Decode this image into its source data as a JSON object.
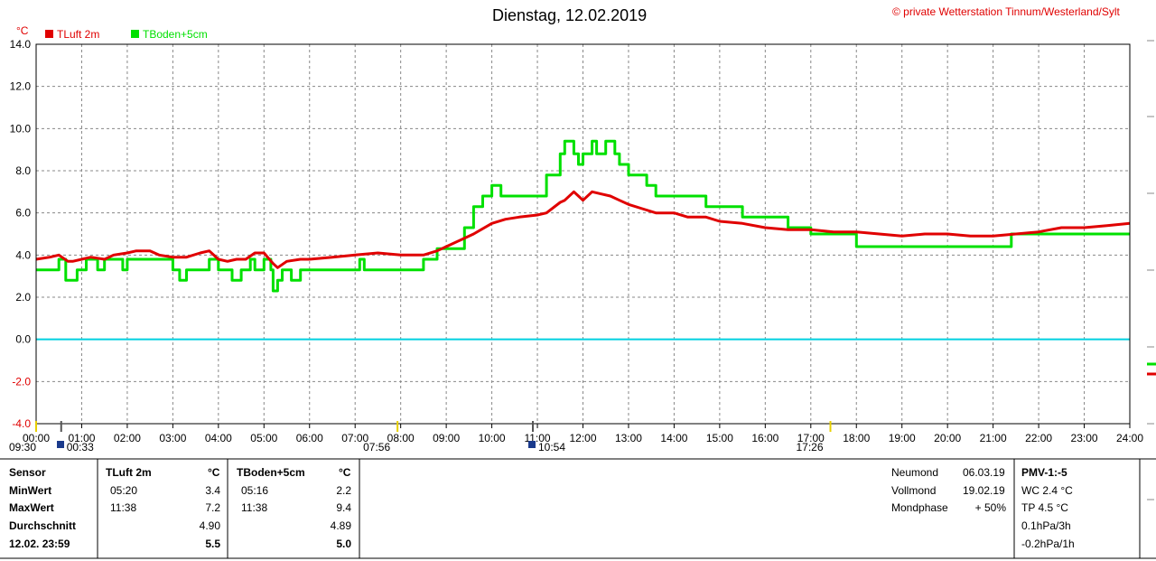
{
  "chart_data": {
    "type": "line",
    "title": "Dienstag, 12.02.2019",
    "copyright": "© private Wetterstation Tinnum/Westerland/Sylt",
    "ylabel": "°C",
    "ylim": [
      -4,
      14
    ],
    "yticks": [
      "-4.0",
      "-2.0",
      "0.0",
      "2.0",
      "4.0",
      "6.0",
      "8.0",
      "10.0",
      "12.0",
      "14.0"
    ],
    "xticks": [
      "00:00",
      "01:00",
      "02:00",
      "03:00",
      "04:00",
      "05:00",
      "06:00",
      "07:00",
      "08:00",
      "09:00",
      "10:00",
      "11:00",
      "12:00",
      "13:00",
      "14:00",
      "15:00",
      "16:00",
      "17:00",
      "18:00",
      "19:00",
      "20:00",
      "21:00",
      "22:00",
      "23:00",
      "24:00"
    ],
    "xlim": [
      0,
      24
    ],
    "grid": true,
    "zero_line": 0,
    "events": [
      {
        "label": "09:30",
        "x": 0.0
      },
      {
        "label": "00:33",
        "x": 0.55
      },
      {
        "label": "07:56",
        "x": 7.93
      },
      {
        "label": "10:54",
        "x": 10.9
      },
      {
        "label": "17:26",
        "x": 17.43
      }
    ],
    "series": [
      {
        "name": "TLuft 2m",
        "color": "#e00000",
        "x": [
          0,
          0.3,
          0.5,
          0.7,
          0.8,
          1.0,
          1.2,
          1.5,
          1.7,
          2.0,
          2.2,
          2.5,
          2.7,
          3.0,
          3.3,
          3.6,
          3.8,
          4.0,
          4.2,
          4.4,
          4.6,
          4.8,
          5.0,
          5.2,
          5.3,
          5.5,
          5.8,
          6.0,
          6.5,
          7.0,
          7.5,
          8.0,
          8.5,
          8.8,
          9.0,
          9.3,
          9.6,
          10.0,
          10.3,
          10.6,
          11.0,
          11.2,
          11.5,
          11.6,
          11.8,
          11.9,
          12.0,
          12.2,
          12.4,
          12.6,
          12.8,
          13.0,
          13.3,
          13.6,
          14.0,
          14.3,
          14.7,
          15.0,
          15.5,
          16.0,
          16.5,
          17.0,
          17.5,
          18.0,
          18.5,
          19.0,
          19.5,
          20.0,
          20.5,
          21.0,
          21.5,
          22.0,
          22.5,
          23.0,
          23.5,
          24.0
        ],
        "values": [
          3.8,
          3.9,
          4.0,
          3.7,
          3.7,
          3.8,
          3.9,
          3.8,
          4.0,
          4.1,
          4.2,
          4.2,
          4.0,
          3.9,
          3.9,
          4.1,
          4.2,
          3.8,
          3.7,
          3.8,
          3.8,
          4.1,
          4.1,
          3.6,
          3.4,
          3.7,
          3.8,
          3.8,
          3.9,
          4.0,
          4.1,
          4.0,
          4.0,
          4.2,
          4.4,
          4.7,
          5.0,
          5.5,
          5.7,
          5.8,
          5.9,
          6.0,
          6.5,
          6.6,
          7.0,
          6.8,
          6.6,
          7.0,
          6.9,
          6.8,
          6.6,
          6.4,
          6.2,
          6.0,
          6.0,
          5.8,
          5.8,
          5.6,
          5.5,
          5.3,
          5.2,
          5.2,
          5.1,
          5.1,
          5.0,
          4.9,
          5.0,
          5.0,
          4.9,
          4.9,
          5.0,
          5.1,
          5.3,
          5.3,
          5.4,
          5.5
        ]
      },
      {
        "name": "TBoden+5cm",
        "color": "#00e000",
        "x": [
          0,
          0.5,
          0.65,
          0.9,
          1.1,
          1.35,
          1.5,
          1.9,
          2.0,
          2.5,
          3.0,
          3.15,
          3.3,
          3.8,
          4.0,
          4.3,
          4.5,
          4.7,
          4.8,
          5.0,
          5.15,
          5.2,
          5.3,
          5.4,
          5.6,
          5.8,
          6.0,
          6.5,
          7.0,
          7.1,
          7.2,
          7.9,
          8.0,
          8.5,
          8.8,
          9.0,
          9.4,
          9.6,
          9.8,
          10.0,
          10.2,
          10.5,
          11.0,
          11.2,
          11.5,
          11.6,
          11.8,
          11.9,
          12.0,
          12.2,
          12.3,
          12.5,
          12.7,
          12.8,
          13.0,
          13.4,
          13.6,
          14.0,
          14.3,
          14.7,
          15.0,
          15.5,
          16.0,
          16.5,
          17.0,
          17.5,
          18.0,
          19.0,
          20.0,
          21.0,
          21.4,
          22.0,
          23.0,
          24.0
        ],
        "values": [
          3.3,
          3.8,
          2.8,
          3.3,
          3.8,
          3.3,
          3.8,
          3.3,
          3.8,
          3.8,
          3.3,
          2.8,
          3.3,
          3.8,
          3.3,
          2.8,
          3.3,
          3.8,
          3.3,
          3.8,
          3.3,
          2.3,
          2.8,
          3.3,
          2.8,
          3.3,
          3.3,
          3.3,
          3.3,
          3.8,
          3.3,
          3.3,
          3.3,
          3.8,
          4.3,
          4.3,
          5.3,
          6.3,
          6.8,
          7.3,
          6.8,
          6.8,
          6.8,
          7.8,
          8.8,
          9.4,
          8.8,
          8.3,
          8.8,
          9.4,
          8.8,
          9.4,
          8.8,
          8.3,
          7.8,
          7.3,
          6.8,
          6.8,
          6.8,
          6.3,
          6.3,
          5.8,
          5.8,
          5.3,
          5.0,
          5.0,
          4.4,
          4.4,
          4.4,
          4.4,
          5.0,
          5.0,
          5.0,
          5.0
        ]
      }
    ]
  },
  "legend": {
    "items": [
      {
        "label": "TLuft 2m",
        "color": "#e00000"
      },
      {
        "label": "TBoden+5cm",
        "color": "#00e000"
      }
    ]
  },
  "table": {
    "header": {
      "sensor": "Sensor",
      "t1": "TLuft 2m",
      "u1": "°C",
      "t2": "TBoden+5cm",
      "u2": "°C"
    },
    "min": {
      "label": "MinWert",
      "t1_time": "05:20",
      "t1_val": "3.4",
      "t2_time": "05:16",
      "t2_val": "2.2"
    },
    "max": {
      "label": "MaxWert",
      "t1_time": "11:38",
      "t1_val": "7.2",
      "t2_time": "11:38",
      "t2_val": "9.4"
    },
    "avg": {
      "label": "Durchschnitt",
      "t1_val": "4.90",
      "t2_val": "4.89"
    },
    "cur": {
      "label": "12.02. 23:59",
      "t1_val": "5.5",
      "t2_val": "5.0"
    }
  },
  "moon": {
    "neumond_label": "Neumond",
    "neumond_date": "06.03.19",
    "vollmond_label": "Vollmond",
    "vollmond_date": "19.02.19",
    "phase_label": "Mondphase",
    "phase_value": "+ 50%"
  },
  "pmv": {
    "title": "PMV-1:-5",
    "wc": "WC 2.4 °C",
    "tp": "TP 4.5 °C",
    "p3h": "0.1hPa/3h",
    "p1h": "-0.2hPa/1h"
  }
}
